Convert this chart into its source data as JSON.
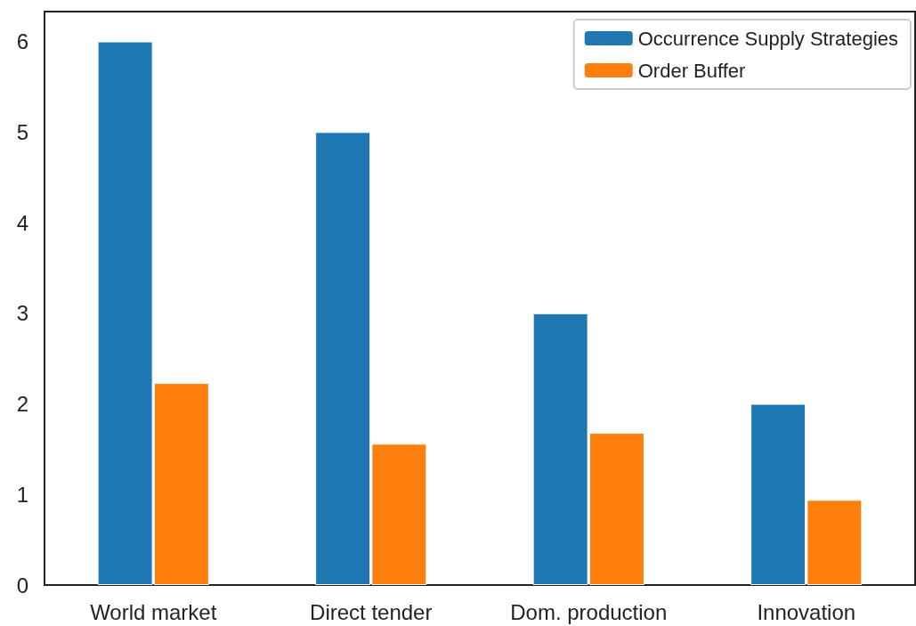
{
  "chart_data": {
    "type": "bar",
    "categories": [
      "World market",
      "Direct tender",
      "Dom. production",
      "Innovation"
    ],
    "series": [
      {
        "name": "Occurrence Supply Strategies",
        "color": "#1f77b4",
        "values": [
          6,
          5,
          3,
          2
        ]
      },
      {
        "name": "Order Buffer",
        "color": "#ff7f0e",
        "values": [
          2.23,
          1.56,
          1.68,
          0.94
        ]
      }
    ],
    "ylim": [
      0,
      6.33
    ],
    "yticks": [
      0,
      1,
      2,
      3,
      4,
      5,
      6
    ],
    "grid": false,
    "legend": "top right"
  }
}
